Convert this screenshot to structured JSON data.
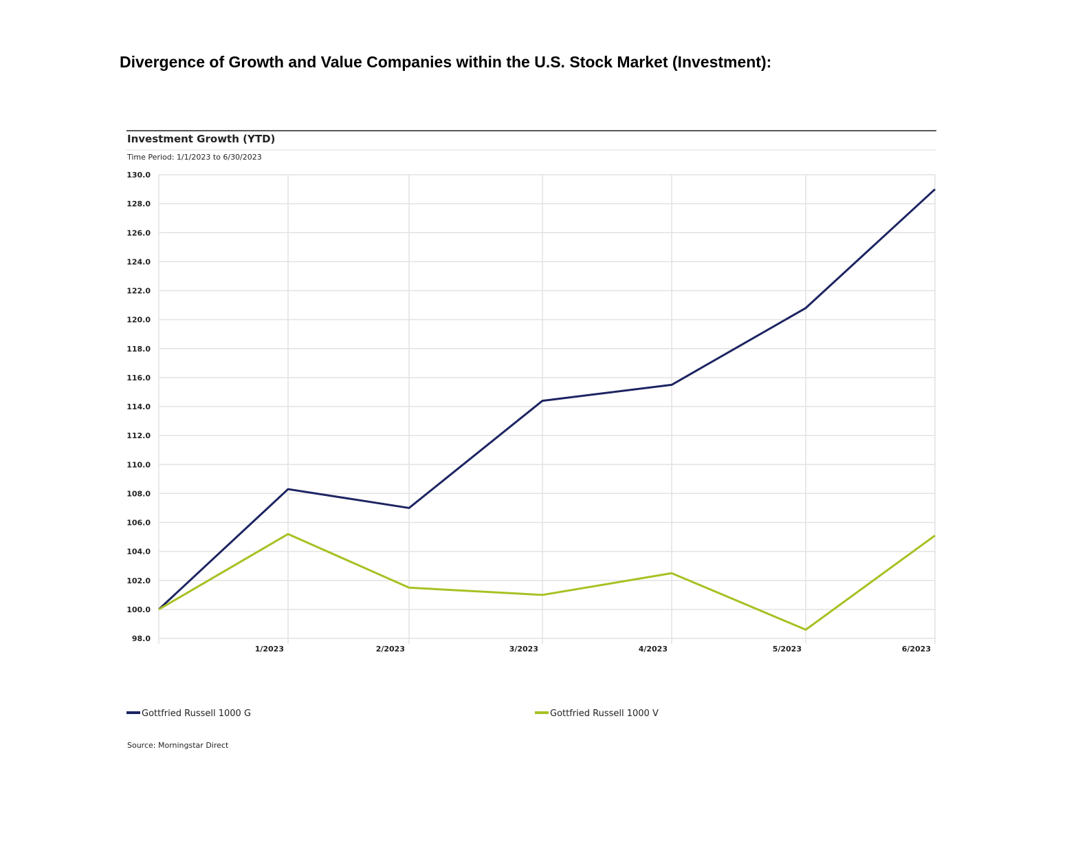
{
  "page_title": "Divergence of Growth and Value Companies within the U.S. Stock Market (Investment):",
  "chart_data": {
    "type": "line",
    "title": "Investment Growth (YTD)",
    "subtitle": "Time Period: 1/1/2023 to 6/30/2023",
    "xlabel": "",
    "ylabel": "",
    "categories": [
      "",
      "1/2023",
      "2/2023",
      "3/2023",
      "4/2023",
      "5/2023",
      "6/2023"
    ],
    "ylim": [
      98,
      130
    ],
    "yticks": [
      "98.0",
      "100.0",
      "102.0",
      "104.0",
      "106.0",
      "108.0",
      "110.0",
      "112.0",
      "114.0",
      "116.0",
      "118.0",
      "120.0",
      "122.0",
      "124.0",
      "126.0",
      "128.0",
      "130.0"
    ],
    "grid": true,
    "legend_position": "bottom",
    "series": [
      {
        "name": "Gottfried Russell 1000 G",
        "color": "#1c2462",
        "values": [
          100.0,
          108.3,
          107.0,
          114.4,
          115.5,
          120.8,
          129.0
        ]
      },
      {
        "name": "Gottfried Russell 1000 V",
        "color": "#a9c023",
        "values": [
          100.0,
          105.2,
          101.5,
          101.0,
          102.5,
          98.6,
          105.1
        ]
      }
    ],
    "source": "Source: Morningstar Direct"
  }
}
